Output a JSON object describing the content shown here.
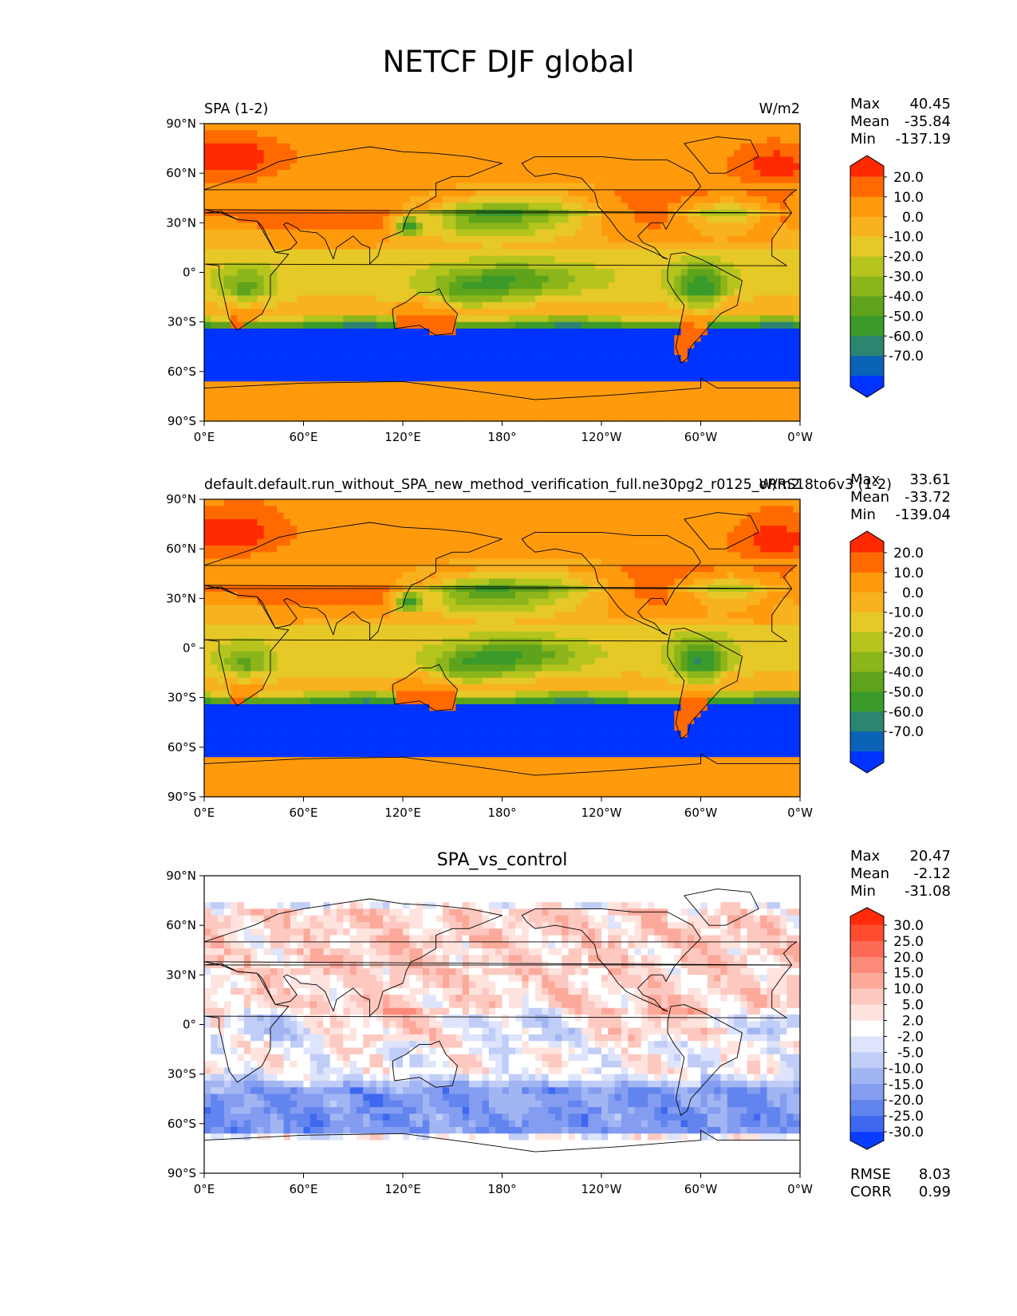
{
  "figure": {
    "title": "NETCF DJF global"
  },
  "chart_data": [
    {
      "type": "heatmap",
      "panel": "test",
      "left_title": "SPA (1-2)",
      "units": "W/m2",
      "center_title": "",
      "stats": {
        "labels": [
          "Max",
          "Mean",
          "Min"
        ],
        "values": [
          "40.45",
          "-35.84",
          "-137.19"
        ]
      },
      "x_ticks": [
        "0°E",
        "60°E",
        "120°E",
        "180°",
        "120°W",
        "60°W",
        "0°W"
      ],
      "y_ticks": [
        "90°N",
        "60°N",
        "30°N",
        "0°",
        "30°S",
        "60°S",
        "90°S"
      ],
      "xlim": [
        0,
        360
      ],
      "ylim": [
        -90,
        90
      ],
      "colorbar": {
        "levels": [
          "20.0",
          "10.0",
          "0.0",
          "-10.0",
          "-20.0",
          "-30.0",
          "-40.0",
          "-50.0",
          "-60.0",
          "-70.0"
        ],
        "colors": [
          "#ff2a00",
          "#ff6a00",
          "#ff9a0d",
          "#f8b21f",
          "#e6c827",
          "#b5c51e",
          "#8bb51a",
          "#5fa31c",
          "#3a9a2a",
          "#2d8570",
          "#0b63b8",
          "#0033ff"
        ]
      }
    },
    {
      "type": "heatmap",
      "panel": "reference",
      "left_title": "default.default.run_without_SPA_new_method_verification_full.ne30pg2_r0125_oRRS18to6v3 (1-2)",
      "units": "W/m2",
      "center_title": "",
      "stats": {
        "labels": [
          "Max",
          "Mean",
          "Min"
        ],
        "values": [
          "33.61",
          "-33.72",
          "-139.04"
        ]
      },
      "x_ticks": [
        "0°E",
        "60°E",
        "120°E",
        "180°",
        "120°W",
        "60°W",
        "0°W"
      ],
      "y_ticks": [
        "90°N",
        "60°N",
        "30°N",
        "0°",
        "30°S",
        "60°S",
        "90°S"
      ],
      "xlim": [
        0,
        360
      ],
      "ylim": [
        -90,
        90
      ],
      "colorbar": {
        "levels": [
          "20.0",
          "10.0",
          "0.0",
          "-10.0",
          "-20.0",
          "-30.0",
          "-40.0",
          "-50.0",
          "-60.0",
          "-70.0"
        ],
        "colors": [
          "#ff2a00",
          "#ff6a00",
          "#ff9a0d",
          "#f8b21f",
          "#e6c827",
          "#b5c51e",
          "#8bb51a",
          "#5fa31c",
          "#3a9a2a",
          "#2d8570",
          "#0b63b8",
          "#0033ff"
        ]
      }
    },
    {
      "type": "heatmap",
      "panel": "difference",
      "left_title": "",
      "units": "",
      "center_title": "SPA_vs_control",
      "stats": {
        "labels": [
          "Max",
          "Mean",
          "Min"
        ],
        "values": [
          "20.47",
          "-2.12",
          "-31.08"
        ]
      },
      "extra_stats": {
        "labels": [
          "RMSE",
          "CORR"
        ],
        "values": [
          "8.03",
          "0.99"
        ]
      },
      "x_ticks": [
        "0°E",
        "60°E",
        "120°E",
        "180°",
        "120°W",
        "60°W",
        "0°W"
      ],
      "y_ticks": [
        "90°N",
        "60°N",
        "30°N",
        "0°",
        "30°S",
        "60°S",
        "90°S"
      ],
      "xlim": [
        0,
        360
      ],
      "ylim": [
        -90,
        90
      ],
      "colorbar": {
        "levels": [
          "30.0",
          "25.0",
          "20.0",
          "15.0",
          "10.0",
          "5.0",
          "2.0",
          "-2.0",
          "-5.0",
          "-10.0",
          "-15.0",
          "-20.0",
          "-25.0",
          "-30.0"
        ],
        "colors": [
          "#ff2a0a",
          "#ff4b2e",
          "#fd6a55",
          "#fb8a78",
          "#fca99a",
          "#fdc8bf",
          "#fee3de",
          "#ffffff",
          "#dde4fb",
          "#c0cdf7",
          "#a2b5f3",
          "#849df0",
          "#6284ee",
          "#3e68f0",
          "#0a3cff"
        ]
      }
    }
  ]
}
